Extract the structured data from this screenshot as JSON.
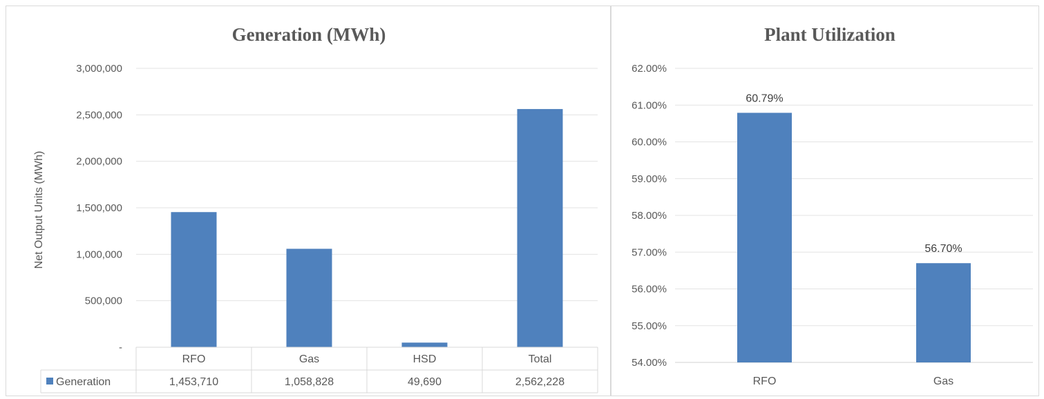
{
  "chart_data": [
    {
      "type": "bar",
      "title": "Generation (MWh)",
      "xlabel": "",
      "ylabel": "Net Output Units (MWh)",
      "ylim": [
        0,
        3000000
      ],
      "yticks": [
        0,
        500000,
        1000000,
        1500000,
        2000000,
        2500000,
        3000000
      ],
      "ytick_labels": [
        "-",
        "500,000",
        "1,000,000",
        "1,500,000",
        "2,000,000",
        "2,500,000",
        "3,000,000"
      ],
      "categories": [
        "RFO",
        "Gas",
        "HSD",
        "Total"
      ],
      "series": [
        {
          "name": "Generation",
          "values": [
            1453710,
            1058828,
            49690,
            2562228
          ],
          "value_labels": [
            "1,453,710",
            "1,058,828",
            "49,690",
            "2,562,228"
          ]
        }
      ],
      "data_table": true,
      "grid": true,
      "color": "#4f81bd"
    },
    {
      "type": "bar",
      "title": "Plant Utilization",
      "xlabel": "",
      "ylabel": "",
      "ylim": [
        54,
        62
      ],
      "yticks": [
        54,
        55,
        56,
        57,
        58,
        59,
        60,
        61,
        62
      ],
      "ytick_labels": [
        "54.00%",
        "55.00%",
        "56.00%",
        "57.00%",
        "58.00%",
        "59.00%",
        "60.00%",
        "61.00%",
        "62.00%"
      ],
      "categories": [
        "RFO",
        "Gas"
      ],
      "series": [
        {
          "values": [
            60.79,
            56.7
          ],
          "value_labels": [
            "60.79%",
            "56.70%"
          ]
        }
      ],
      "grid": true,
      "color": "#4f81bd"
    }
  ]
}
